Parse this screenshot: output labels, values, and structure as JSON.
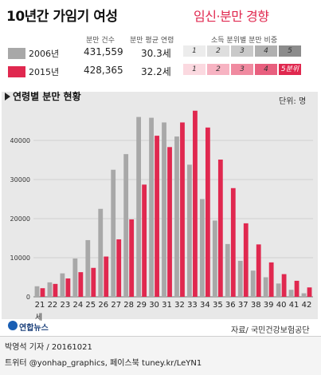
{
  "title": "10년간 가임기 여성",
  "title_highlight": "임신·분만 경향",
  "legend": {
    "col_births": "분만 건수",
    "col_age": "분만 평균 연령",
    "col_income": "소득 분위별 분만 비중",
    "rows": [
      {
        "year": "2006년",
        "births": "431,559",
        "avg_age": "30.3세",
        "color": "#a8a8a8",
        "quintiles": [
          "1",
          "2",
          "3",
          "4",
          "5"
        ],
        "q_colors": [
          "#ececec",
          "#dedede",
          "#c9c9c9",
          "#b0b0b0",
          "#8c8c8c"
        ]
      },
      {
        "year": "2015년",
        "births": "428,365",
        "avg_age": "32.2세",
        "color": "#e0284f",
        "quintiles": [
          "1",
          "2",
          "3",
          "4",
          "5분위"
        ],
        "q_colors": [
          "#fbd9e0",
          "#f7b3c2",
          "#f08aa0",
          "#e85f7e",
          "#e0284f"
        ]
      }
    ]
  },
  "chart_subtitle": "연령별 분만 현황",
  "unit": "단위: 명",
  "age_unit": "세",
  "source": "자료/ 국민건강보험공단",
  "logo": "연합뉴스",
  "credit": "박영석 기자 / 20161021",
  "social": "트위터 @yonhap_graphics, 페이스북 tuney.kr/LeYN1",
  "chart_data": {
    "type": "bar",
    "categories": [
      "21",
      "22",
      "23",
      "24",
      "25",
      "26",
      "27",
      "28",
      "29",
      "30",
      "31",
      "32",
      "33",
      "34",
      "35",
      "36",
      "37",
      "38",
      "39",
      "40",
      "41",
      "42"
    ],
    "series": [
      {
        "name": "2006년",
        "color": "#a8a8a8",
        "values": [
          2700,
          3700,
          6000,
          9800,
          14500,
          22500,
          32500,
          36500,
          46000,
          45800,
          44600,
          41000,
          33800,
          25000,
          19500,
          13500,
          9200,
          6700,
          5000,
          3400,
          1800,
          900
        ]
      },
      {
        "name": "2015년",
        "color": "#e0284f",
        "values": [
          2200,
          3300,
          4700,
          6300,
          7400,
          10300,
          14700,
          19800,
          28700,
          41200,
          38300,
          44600,
          47600,
          43300,
          35100,
          27800,
          18800,
          13400,
          8800,
          5800,
          4100,
          2400
        ]
      }
    ],
    "y_ticks": [
      "0",
      "10000",
      "20000",
      "30000",
      "40000"
    ],
    "ylim": [
      0,
      50000
    ]
  }
}
